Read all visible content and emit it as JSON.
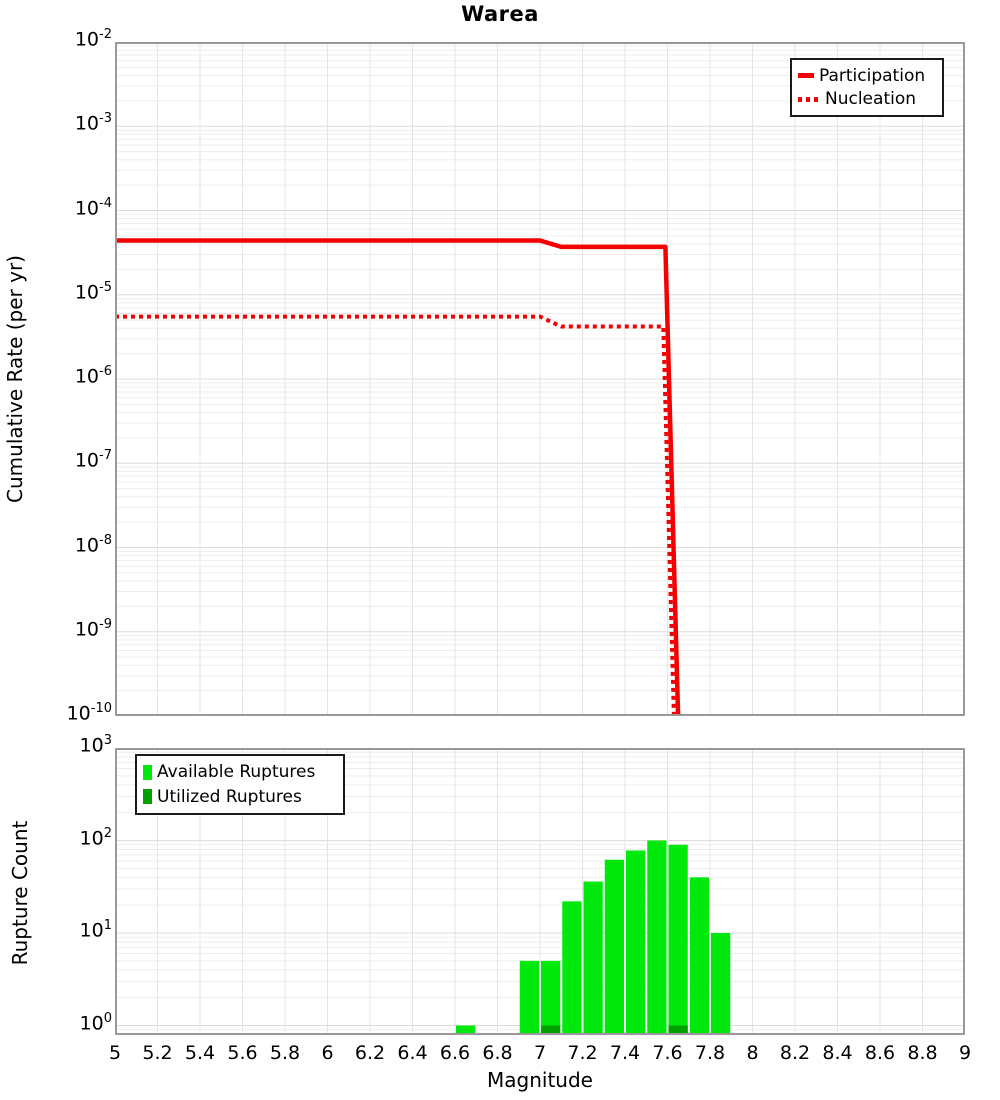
{
  "title": "Warea",
  "xlabel": "Magnitude",
  "colors": {
    "series_red": "#f40000",
    "available_green": "#00e80c",
    "utilized_green": "#00a000",
    "grid_major": "#dcdcdc",
    "grid_minor": "#ededed",
    "grid_vertical": "#e4e4e4",
    "axis_border": "#999999",
    "tick_text": "#000000"
  },
  "x_ticks": [
    "5",
    "5.2",
    "5.4",
    "5.6",
    "5.8",
    "6",
    "6.2",
    "6.4",
    "6.6",
    "6.8",
    "7",
    "7.2",
    "7.4",
    "7.6",
    "7.8",
    "8",
    "8.2",
    "8.4",
    "8.6",
    "8.8",
    "9"
  ],
  "chart_data": [
    {
      "type": "line",
      "panel": "top",
      "title": "Warea",
      "ylabel": "Cumulative Rate (per yr)",
      "xlabel": "Magnitude",
      "x_range": [
        5,
        9
      ],
      "y_range": [
        1e-10,
        0.01
      ],
      "y_scale": "log",
      "y_tick_exponents": [
        -2,
        -3,
        -4,
        -5,
        -6,
        -7,
        -8,
        -9,
        -10
      ],
      "grid": true,
      "legend_position": "top-right",
      "series": [
        {
          "name": "Participation",
          "style": "solid",
          "points": [
            [
              5.0,
              4.4e-05
            ],
            [
              7.0,
              4.4e-05
            ],
            [
              7.1,
              3.7e-05
            ],
            [
              7.59,
              3.7e-05
            ],
            [
              7.65,
              1e-10
            ]
          ]
        },
        {
          "name": "Nucleation",
          "style": "dotted",
          "points": [
            [
              5.0,
              5.5e-06
            ],
            [
              7.0,
              5.5e-06
            ],
            [
              7.1,
              4.2e-06
            ],
            [
              7.58,
              4.2e-06
            ],
            [
              7.63,
              1e-10
            ]
          ]
        }
      ]
    },
    {
      "type": "bar",
      "panel": "bottom",
      "ylabel": "Rupture Count",
      "xlabel": "Magnitude",
      "x_range": [
        5,
        9
      ],
      "y_range": [
        0.79,
        1000
      ],
      "y_scale": "log",
      "y_tick_exponents": [
        3,
        2,
        1,
        0
      ],
      "grid": true,
      "legend_position": "top-left",
      "bar_width": 0.1,
      "bin_centers": [
        6.65,
        6.95,
        7.05,
        7.15,
        7.25,
        7.35,
        7.45,
        7.55,
        7.65,
        7.75,
        7.85
      ],
      "series": [
        {
          "name": "Available Ruptures",
          "values": [
            1,
            5,
            5,
            22,
            36,
            62,
            78,
            100,
            90,
            40,
            10
          ]
        },
        {
          "name": "Utilized Ruptures",
          "values": [
            0,
            0,
            1,
            0,
            0,
            0,
            0,
            0,
            1,
            0,
            0
          ]
        }
      ]
    }
  ]
}
